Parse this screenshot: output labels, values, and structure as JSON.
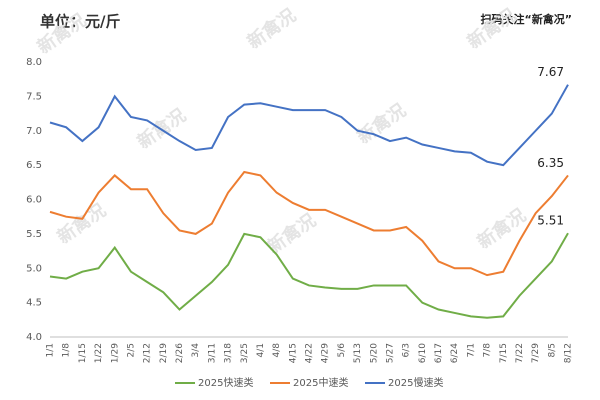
{
  "chart_data": {
    "type": "line",
    "unit_label": "单位：元/斤",
    "brand_note": "扫码关注“新禽况”",
    "watermark": "新禽况",
    "categories": [
      "1/1",
      "1/8",
      "1/15",
      "1/22",
      "1/29",
      "2/5",
      "2/12",
      "2/19",
      "2/26",
      "3/4",
      "3/11",
      "3/18",
      "3/25",
      "4/1",
      "4/8",
      "4/15",
      "4/22",
      "4/29",
      "5/6",
      "5/13",
      "5/20",
      "5/27",
      "6/3",
      "6/10",
      "6/17",
      "6/24",
      "7/1",
      "7/8",
      "7/15",
      "7/22",
      "7/29",
      "8/5",
      "8/12"
    ],
    "series": [
      {
        "name": "2025慢速类",
        "color": "#4472c4",
        "values": [
          7.12,
          7.05,
          6.85,
          7.05,
          7.5,
          7.2,
          7.15,
          7.0,
          6.85,
          6.72,
          6.75,
          7.2,
          7.38,
          7.4,
          7.35,
          7.3,
          7.3,
          7.3,
          7.2,
          7.0,
          6.95,
          6.85,
          6.9,
          6.8,
          6.75,
          6.7,
          6.68,
          6.55,
          6.5,
          6.75,
          7.0,
          7.25,
          7.67
        ]
      },
      {
        "name": "2025中速类",
        "color": "#ed7d31",
        "values": [
          5.82,
          5.75,
          5.72,
          6.1,
          6.35,
          6.15,
          6.15,
          5.8,
          5.55,
          5.5,
          5.65,
          6.1,
          6.4,
          6.35,
          6.1,
          5.95,
          5.85,
          5.85,
          5.75,
          5.65,
          5.55,
          5.55,
          5.6,
          5.4,
          5.1,
          5.0,
          5.0,
          4.9,
          4.95,
          5.4,
          5.8,
          6.05,
          6.35
        ]
      },
      {
        "name": "2025快速类",
        "color": "#70ad47",
        "values": [
          4.88,
          4.85,
          4.95,
          5.0,
          5.3,
          4.95,
          4.8,
          4.65,
          4.4,
          4.6,
          4.8,
          5.05,
          5.5,
          5.45,
          5.2,
          4.85,
          4.75,
          4.72,
          4.7,
          4.7,
          4.75,
          4.75,
          4.75,
          4.5,
          4.4,
          4.35,
          4.3,
          4.28,
          4.3,
          4.6,
          4.85,
          5.1,
          5.51
        ]
      }
    ],
    "legend_order": [
      2,
      1,
      0
    ],
    "ylim": [
      4,
      8
    ],
    "yticks": [
      {
        "value": 4,
        "label": "4.0"
      },
      {
        "value": 4.5,
        "label": "4.5"
      },
      {
        "value": 5,
        "label": "5.0"
      },
      {
        "value": 5.5,
        "label": "5.5"
      },
      {
        "value": 6,
        "label": "6.0"
      },
      {
        "value": 6.5,
        "label": "6.5"
      },
      {
        "value": 7,
        "label": "7.0"
      },
      {
        "value": 7.5,
        "label": "7.5"
      },
      {
        "value": 8,
        "label": "8.0"
      }
    ]
  }
}
